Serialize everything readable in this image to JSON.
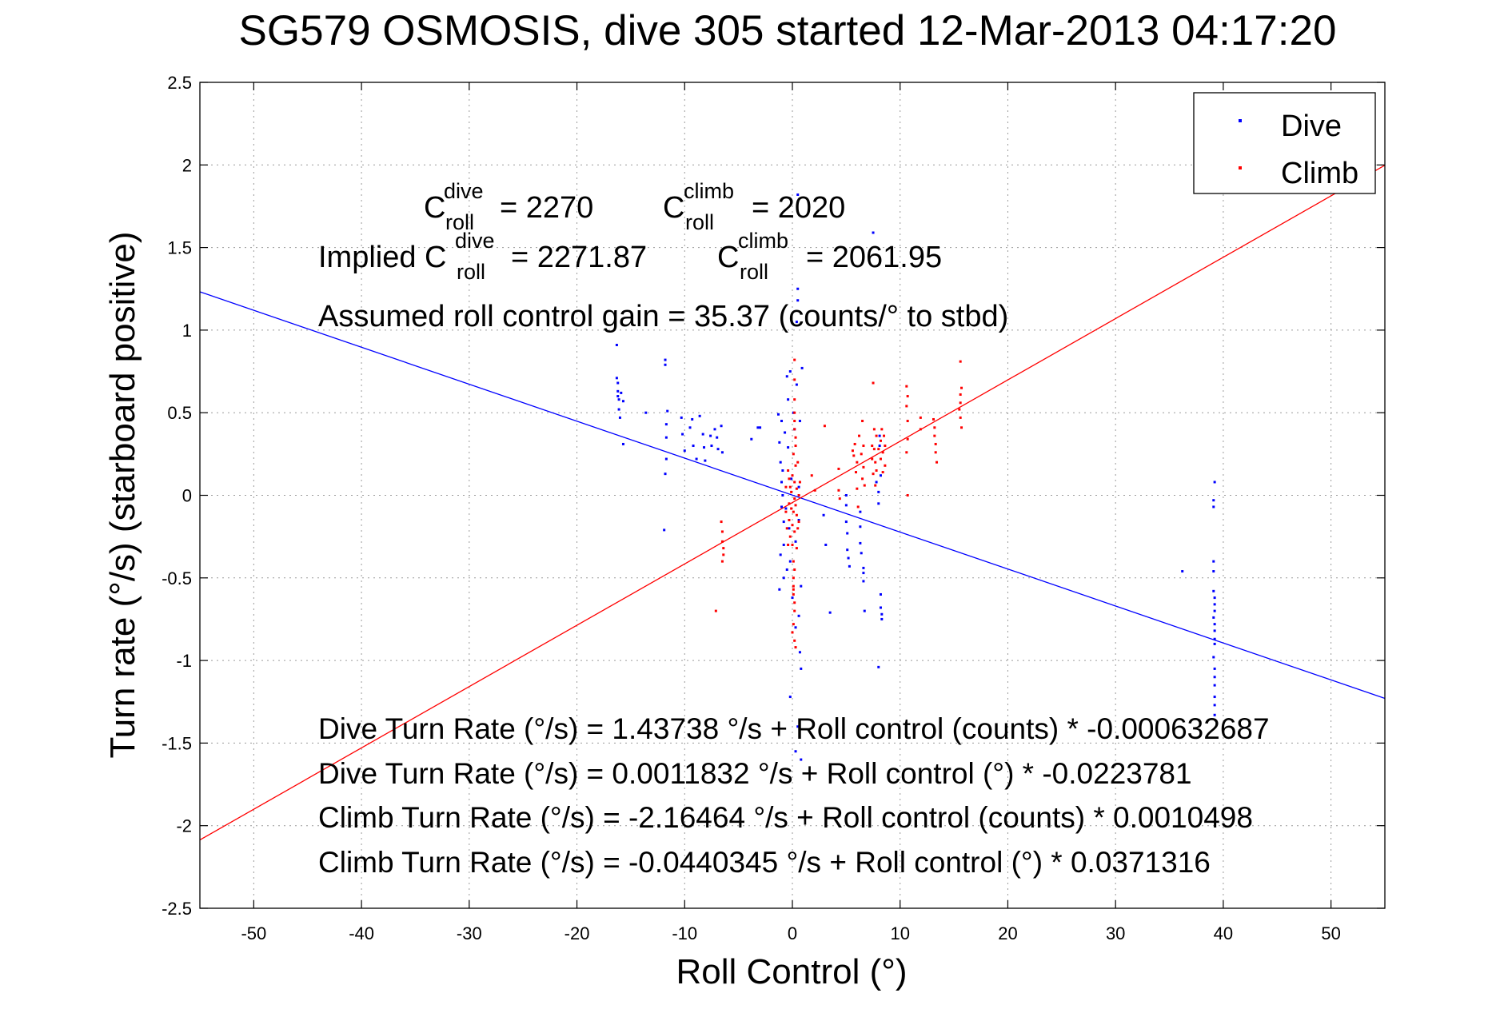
{
  "chart_data": {
    "type": "scatter",
    "title": "SG579 OSMOSIS, dive 305 started 12-Mar-2013 04:17:20",
    "xlabel": "Roll Control (°)",
    "ylabel": "Turn rate (°/s) (starboard positive)",
    "xlim": [
      -55,
      55
    ],
    "ylim": [
      -2.5,
      2.5
    ],
    "xticks": [
      -50,
      -40,
      -30,
      -20,
      -10,
      0,
      10,
      20,
      30,
      40,
      50
    ],
    "yticks": [
      -2.5,
      -2,
      -1.5,
      -1,
      -0.5,
      0,
      0.5,
      1,
      1.5,
      2,
      2.5
    ],
    "xtick_labels": [
      "-50",
      "-40",
      "-30",
      "-20",
      "-10",
      "0",
      "10",
      "20",
      "30",
      "40",
      "50"
    ],
    "ytick_labels": [
      "-2.5",
      "-2",
      "-1.5",
      "-1",
      "-0.5",
      "0",
      "0.5",
      "1",
      "1.5",
      "2",
      "2.5"
    ],
    "grid": true,
    "legend_position": "top-right",
    "legend": [
      {
        "name": "Dive",
        "color": "#0000ff"
      },
      {
        "name": "Climb",
        "color": "#ff0000"
      }
    ],
    "series": [
      {
        "name": "Dive",
        "color": "#0000ff",
        "points": [
          [
            -16.3,
            0.91
          ],
          [
            -16.3,
            0.71
          ],
          [
            -16.2,
            0.68
          ],
          [
            -16.2,
            0.63
          ],
          [
            -16.1,
            0.58
          ],
          [
            -16.1,
            0.52
          ],
          [
            -16.0,
            0.47
          ],
          [
            -16.2,
            0.6
          ],
          [
            -15.9,
            0.62
          ],
          [
            -15.7,
            0.57
          ],
          [
            -15.7,
            0.31
          ],
          [
            -13.6,
            0.5
          ],
          [
            -11.8,
            0.82
          ],
          [
            -11.8,
            0.79
          ],
          [
            -11.6,
            0.51
          ],
          [
            -11.7,
            0.43
          ],
          [
            -11.7,
            0.35
          ],
          [
            -11.7,
            0.22
          ],
          [
            -11.8,
            0.13
          ],
          [
            -11.9,
            -0.21
          ],
          [
            -10.3,
            0.47
          ],
          [
            -10.2,
            0.37
          ],
          [
            -10.0,
            0.27
          ],
          [
            -9.5,
            0.41
          ],
          [
            -9.3,
            0.46
          ],
          [
            -9.2,
            0.3
          ],
          [
            -8.9,
            0.22
          ],
          [
            -8.6,
            0.48
          ],
          [
            -8.3,
            0.37
          ],
          [
            -8.2,
            0.29
          ],
          [
            -8.1,
            0.21
          ],
          [
            -7.6,
            0.36
          ],
          [
            -7.5,
            0.3
          ],
          [
            -7.2,
            0.4
          ],
          [
            -7.0,
            0.35
          ],
          [
            -6.9,
            0.28
          ],
          [
            -6.6,
            0.42
          ],
          [
            -6.5,
            0.26
          ],
          [
            -3.2,
            0.41
          ],
          [
            -3.0,
            0.41
          ],
          [
            -3.8,
            0.34
          ],
          [
            -1.3,
            0.49
          ],
          [
            -1.2,
            0.32
          ],
          [
            -1.1,
            0.2
          ],
          [
            -1.0,
            0.45
          ],
          [
            -1.0,
            0.08
          ],
          [
            -1.0,
            -0.07
          ],
          [
            -1.1,
            -0.36
          ],
          [
            -1.2,
            -0.57
          ],
          [
            -0.9,
            0.15
          ],
          [
            -0.9,
            0.0
          ],
          [
            -0.8,
            -0.16
          ],
          [
            -0.8,
            -0.3
          ],
          [
            -0.8,
            -0.5
          ],
          [
            -0.7,
            0.38
          ],
          [
            -0.6,
            -0.08
          ],
          [
            -0.5,
            0.72
          ],
          [
            -0.4,
            0.58
          ],
          [
            -0.4,
            0.29
          ],
          [
            -0.3,
            -0.2
          ],
          [
            -0.2,
            -0.4
          ],
          [
            -0.2,
            0.75
          ],
          [
            -0.1,
            0.1
          ],
          [
            0.0,
            -0.62
          ],
          [
            0.1,
            0.5
          ],
          [
            0.2,
            0.4
          ],
          [
            0.3,
            -0.28
          ],
          [
            0.3,
            -0.8
          ],
          [
            0.4,
            0.67
          ],
          [
            0.5,
            1.18
          ],
          [
            0.5,
            1.25
          ],
          [
            0.5,
            1.82
          ],
          [
            0.6,
            0.05
          ],
          [
            0.6,
            -0.73
          ],
          [
            0.7,
            -0.95
          ],
          [
            0.8,
            -1.05
          ],
          [
            0.9,
            0.77
          ],
          [
            0.8,
            -0.55
          ],
          [
            0.7,
            0.45
          ],
          [
            0.4,
            1.05
          ],
          [
            -0.2,
            -1.22
          ],
          [
            0.3,
            -1.55
          ],
          [
            0.8,
            -1.6
          ],
          [
            0.5,
            -1.4
          ],
          [
            -0.5,
            -0.45
          ],
          [
            0.6,
            -0.15
          ],
          [
            2.9,
            -0.12
          ],
          [
            3.1,
            -0.3
          ],
          [
            3.5,
            -0.71
          ],
          [
            5.0,
            0.0
          ],
          [
            5.0,
            -0.06
          ],
          [
            5.0,
            -0.16
          ],
          [
            5.1,
            -0.23
          ],
          [
            5.1,
            -0.33
          ],
          [
            5.2,
            -0.38
          ],
          [
            5.3,
            -0.43
          ],
          [
            6.3,
            -0.1
          ],
          [
            6.3,
            -0.19
          ],
          [
            6.3,
            -0.29
          ],
          [
            6.4,
            -0.35
          ],
          [
            6.6,
            -0.44
          ],
          [
            6.6,
            -0.47
          ],
          [
            6.6,
            -0.52
          ],
          [
            6.7,
            -0.7
          ],
          [
            7.5,
            1.59
          ],
          [
            7.8,
            0.08
          ],
          [
            8.0,
            0.02
          ],
          [
            8.0,
            -0.05
          ],
          [
            8.1,
            0.36
          ],
          [
            8.1,
            0.3
          ],
          [
            8.2,
            0.12
          ],
          [
            8.2,
            -0.6
          ],
          [
            8.2,
            -0.68
          ],
          [
            8.3,
            -0.72
          ],
          [
            8.3,
            -0.75
          ],
          [
            8.0,
            -1.04
          ],
          [
            36.2,
            -0.46
          ],
          [
            39.2,
            0.08
          ],
          [
            39.1,
            -0.03
          ],
          [
            39.1,
            -0.07
          ],
          [
            39.1,
            -0.4
          ],
          [
            39.1,
            -0.46
          ],
          [
            39.1,
            -0.58
          ],
          [
            39.2,
            -0.62
          ],
          [
            39.2,
            -0.66
          ],
          [
            39.2,
            -0.7
          ],
          [
            39.1,
            -0.74
          ],
          [
            39.2,
            -0.78
          ],
          [
            39.2,
            -0.82
          ],
          [
            39.2,
            -0.87
          ],
          [
            39.2,
            -0.9
          ],
          [
            39.1,
            -0.98
          ],
          [
            39.2,
            -1.05
          ],
          [
            39.2,
            -1.1
          ],
          [
            39.2,
            -1.15
          ],
          [
            39.2,
            -1.22
          ],
          [
            39.2,
            -1.27
          ],
          [
            39.2,
            -1.33
          ]
        ]
      },
      {
        "name": "Climb",
        "color": "#ff0000",
        "points": [
          [
            -7.1,
            -0.7
          ],
          [
            -6.6,
            -0.16
          ],
          [
            -6.5,
            -0.22
          ],
          [
            -6.5,
            -0.28
          ],
          [
            -6.4,
            -0.32
          ],
          [
            -6.4,
            -0.36
          ],
          [
            -6.5,
            -0.4
          ],
          [
            -0.6,
            0.05
          ],
          [
            -0.6,
            -0.1
          ],
          [
            -0.5,
            -0.2
          ],
          [
            -0.4,
            0.15
          ],
          [
            -0.4,
            -0.3
          ],
          [
            -0.3,
            0.1
          ],
          [
            -0.3,
            -0.05
          ],
          [
            -0.3,
            -0.15
          ],
          [
            -0.2,
            0.05
          ],
          [
            -0.2,
            -0.25
          ],
          [
            -0.1,
            -0.08
          ],
          [
            -0.1,
            0.02
          ],
          [
            0.0,
            0.12
          ],
          [
            0.0,
            -0.18
          ],
          [
            0.0,
            -0.3
          ],
          [
            0.1,
            0.25
          ],
          [
            0.1,
            -0.1
          ],
          [
            0.1,
            -0.4
          ],
          [
            0.2,
            0.08
          ],
          [
            0.2,
            -0.02
          ],
          [
            0.2,
            -0.22
          ],
          [
            0.3,
            0.35
          ],
          [
            0.3,
            0.18
          ],
          [
            0.3,
            -0.06
          ],
          [
            0.4,
            -0.12
          ],
          [
            0.4,
            0.04
          ],
          [
            0.4,
            -0.32
          ],
          [
            0.5,
            0.2
          ],
          [
            0.5,
            -0.2
          ],
          [
            0.6,
            0.0
          ],
          [
            0.6,
            -0.16
          ],
          [
            0.7,
            0.08
          ],
          [
            0.2,
            0.82
          ],
          [
            0.2,
            0.7
          ],
          [
            0.2,
            0.58
          ],
          [
            0.2,
            0.5
          ],
          [
            0.2,
            0.45
          ],
          [
            0.2,
            0.4
          ],
          [
            0.3,
            0.3
          ],
          [
            0.1,
            -0.5
          ],
          [
            0.1,
            -0.55
          ],
          [
            0.1,
            -0.6
          ],
          [
            0.2,
            -0.65
          ],
          [
            0.2,
            -0.7
          ],
          [
            0.1,
            -0.78
          ],
          [
            0.0,
            -0.83
          ],
          [
            0.2,
            -0.88
          ],
          [
            0.3,
            -0.92
          ],
          [
            0.1,
            -0.57
          ],
          [
            0.2,
            -0.45
          ],
          [
            1.8,
            0.12
          ],
          [
            2.1,
            0.03
          ],
          [
            3.0,
            0.42
          ],
          [
            4.3,
            0.16
          ],
          [
            4.3,
            0.03
          ],
          [
            4.4,
            -0.02
          ],
          [
            5.6,
            0.27
          ],
          [
            5.7,
            0.24
          ],
          [
            5.8,
            0.31
          ],
          [
            5.9,
            0.14
          ],
          [
            6.0,
            0.2
          ],
          [
            6.0,
            0.04
          ],
          [
            6.1,
            -0.07
          ],
          [
            6.2,
            0.36
          ],
          [
            6.4,
            0.25
          ],
          [
            6.5,
            0.45
          ],
          [
            6.5,
            0.1
          ],
          [
            6.6,
            0.3
          ],
          [
            6.6,
            0.17
          ],
          [
            6.7,
            0.06
          ],
          [
            7.4,
            0.3
          ],
          [
            7.4,
            0.22
          ],
          [
            7.5,
            0.13
          ],
          [
            7.5,
            0.68
          ],
          [
            7.6,
            0.4
          ],
          [
            7.6,
            0.28
          ],
          [
            7.7,
            0.2
          ],
          [
            7.7,
            0.06
          ],
          [
            7.8,
            0.36
          ],
          [
            7.8,
            0.15
          ],
          [
            8.0,
            0.28
          ],
          [
            8.2,
            0.33
          ],
          [
            8.2,
            0.22
          ],
          [
            8.3,
            0.4
          ],
          [
            8.4,
            0.26
          ],
          [
            8.4,
            0.14
          ],
          [
            8.5,
            0.36
          ],
          [
            8.6,
            0.3
          ],
          [
            8.6,
            0.18
          ],
          [
            10.6,
            0.66
          ],
          [
            10.7,
            0.6
          ],
          [
            10.6,
            0.54
          ],
          [
            10.7,
            0.45
          ],
          [
            10.7,
            0.34
          ],
          [
            10.6,
            0.26
          ],
          [
            10.7,
            0.0
          ],
          [
            11.9,
            0.47
          ],
          [
            11.9,
            0.4
          ],
          [
            13.1,
            0.46
          ],
          [
            13.2,
            0.41
          ],
          [
            13.2,
            0.36
          ],
          [
            13.3,
            0.31
          ],
          [
            13.3,
            0.26
          ],
          [
            13.4,
            0.2
          ],
          [
            15.6,
            0.81
          ],
          [
            15.7,
            0.65
          ],
          [
            15.6,
            0.61
          ],
          [
            15.6,
            0.56
          ],
          [
            15.5,
            0.52
          ],
          [
            15.6,
            0.47
          ],
          [
            15.7,
            0.41
          ]
        ]
      }
    ],
    "fit_lines": [
      {
        "name": "Dive",
        "color": "#0000ff",
        "intercept": 0.0011832,
        "slope": -0.0223781
      },
      {
        "name": "Climb",
        "color": "#ff0000",
        "intercept": -0.0440345,
        "slope": 0.0371316
      }
    ],
    "annotations": {
      "c_roll_dive": "= 2270",
      "c_roll_climb": "= 2020",
      "implied_dive": "= 2271.87",
      "implied_climb": "= 2061.95",
      "c_label": "C",
      "sub_roll": "roll",
      "sup_dive": "dive",
      "sup_climb": "climb",
      "implied_prefix": "Implied C",
      "gain": "Assumed roll control gain = 35.37 (counts/° to stbd)",
      "eq1": "Dive Turn Rate (°/s) = 1.43738 °/s + Roll control (counts) * -0.000632687",
      "eq2": "Dive Turn Rate (°/s) = 0.0011832 °/s + Roll control (°) * -0.0223781",
      "eq3": "Climb Turn Rate (°/s) = -2.16464 °/s + Roll control (counts) * 0.0010498",
      "eq4": "Climb Turn Rate (°/s) = -0.0440345 °/s + Roll control (°) * 0.0371316"
    }
  }
}
